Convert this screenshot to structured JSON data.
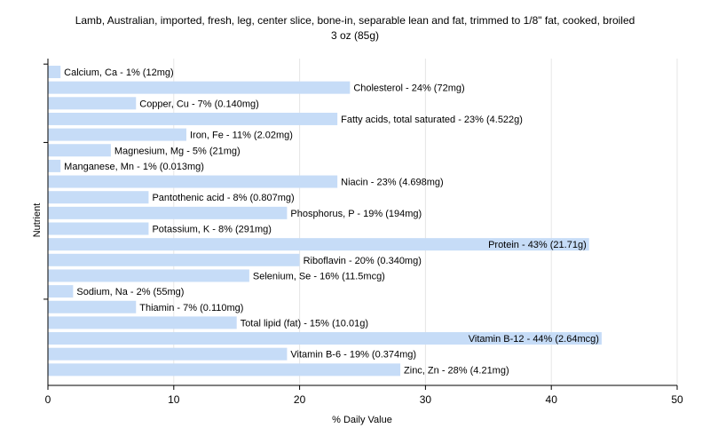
{
  "chart_data": {
    "type": "bar",
    "orientation": "horizontal",
    "title_lines": [
      "Lamb, Australian, imported, fresh, leg, center slice, bone-in, separable lean and fat, trimmed to 1/8\" fat, cooked, broiled",
      "3 oz (85g)"
    ],
    "xlabel": "% Daily Value",
    "ylabel": "Nutrient",
    "xlim": [
      0,
      50
    ],
    "xticks": [
      0,
      10,
      20,
      30,
      40,
      50
    ],
    "grid": true,
    "bar_color": "#c6dcf7",
    "categories": [
      "Calcium, Ca",
      "Cholesterol",
      "Copper, Cu",
      "Fatty acids, total saturated",
      "Iron, Fe",
      "Magnesium, Mg",
      "Manganese, Mn",
      "Niacin",
      "Pantothenic acid",
      "Phosphorus, P",
      "Potassium, K",
      "Protein",
      "Riboflavin",
      "Selenium, Se",
      "Sodium, Na",
      "Thiamin",
      "Total lipid (fat)",
      "Vitamin B-12",
      "Vitamin B-6",
      "Zinc, Zn"
    ],
    "values": [
      1,
      24,
      7,
      23,
      11,
      5,
      1,
      23,
      8,
      19,
      8,
      43,
      20,
      16,
      2,
      7,
      15,
      44,
      19,
      28
    ],
    "labels": [
      "Calcium, Ca - 1% (12mg)",
      "Cholesterol - 24% (72mg)",
      "Copper, Cu - 7% (0.140mg)",
      "Fatty acids, total saturated - 23% (4.522g)",
      "Iron, Fe - 11% (2.02mg)",
      "Magnesium, Mg - 5% (21mg)",
      "Manganese, Mn - 1% (0.013mg)",
      "Niacin - 23% (4.698mg)",
      "Pantothenic acid - 8% (0.807mg)",
      "Phosphorus, P - 19% (194mg)",
      "Potassium, K - 8% (291mg)",
      "Protein - 43% (21.71g)",
      "Riboflavin - 20% (0.340mg)",
      "Selenium, Se - 16% (11.5mcg)",
      "Sodium, Na - 2% (55mg)",
      "Thiamin - 7% (0.110mg)",
      "Total lipid (fat) - 15% (10.01g)",
      "Vitamin B-12 - 44% (2.64mcg)",
      "Vitamin B-6 - 19% (0.374mg)",
      "Zinc, Zn - 28% (4.21mg)"
    ]
  }
}
